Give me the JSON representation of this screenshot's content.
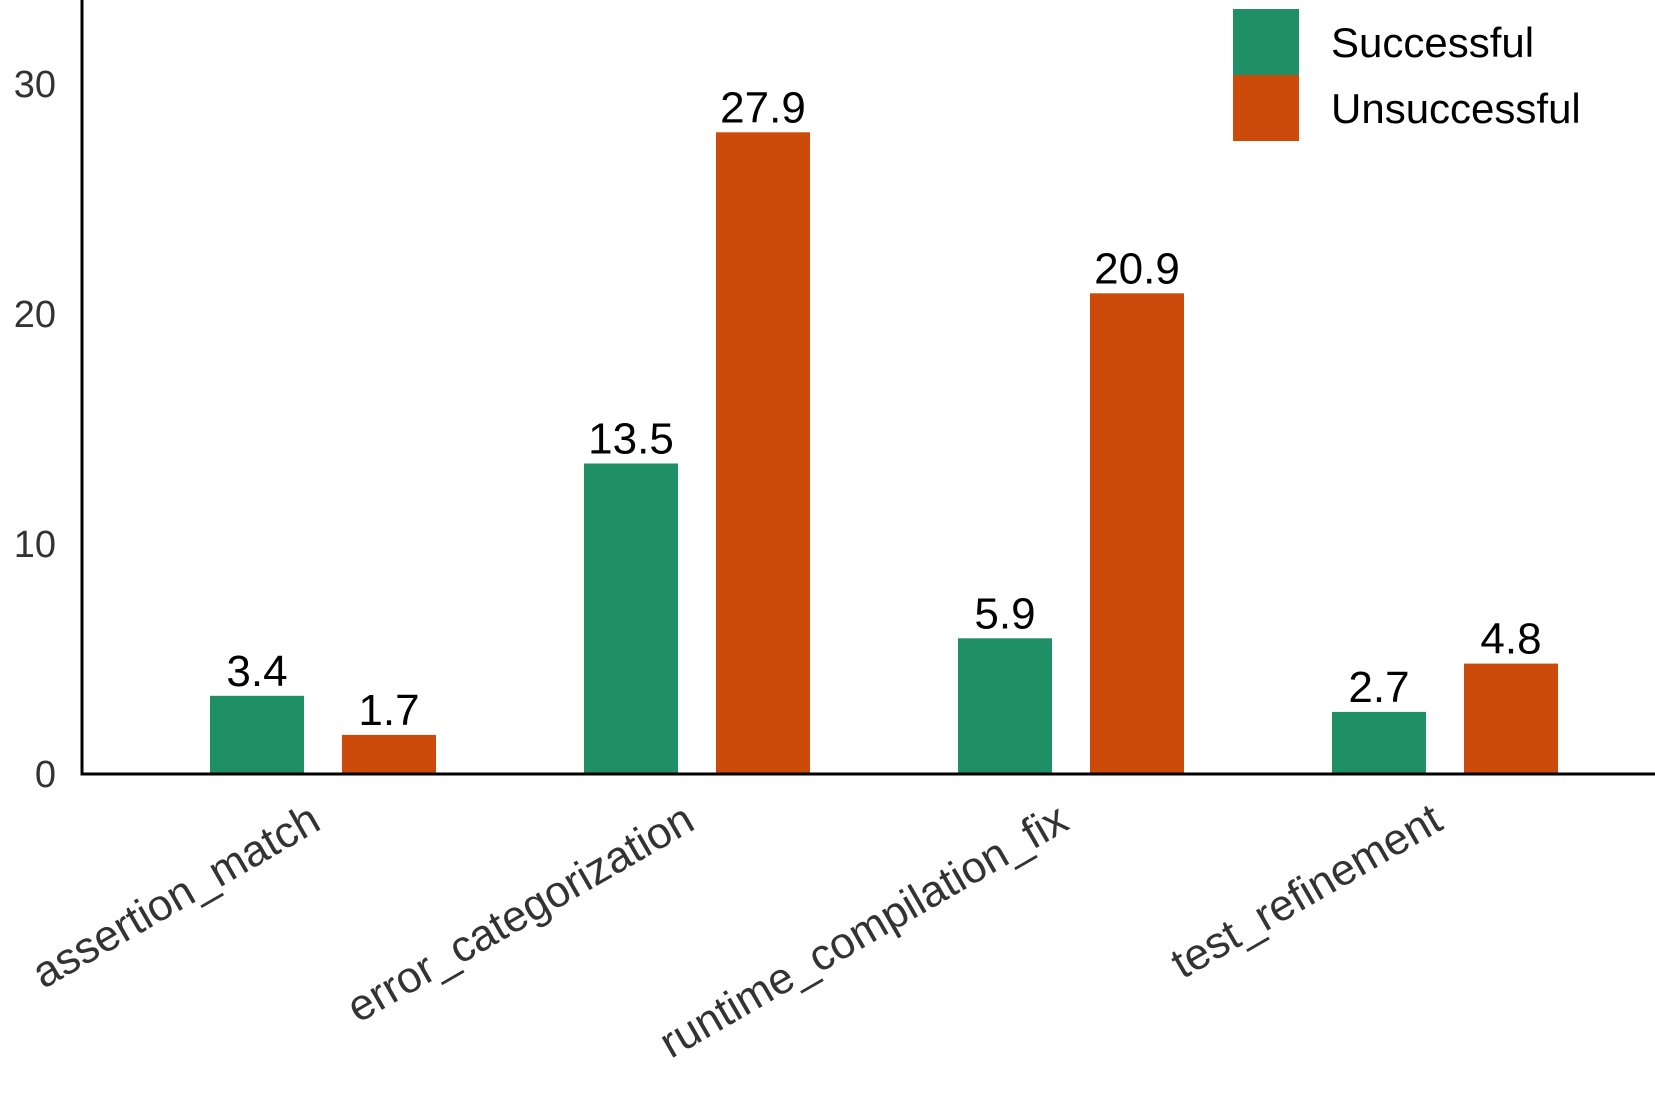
{
  "chart_data": {
    "type": "bar",
    "categories": [
      "assertion_match",
      "error_categorization",
      "runtime_compilation_fix",
      "test_refinement"
    ],
    "series": [
      {
        "name": "Successful",
        "values": [
          3.4,
          13.5,
          5.9,
          2.7
        ],
        "color": "#1f8f65"
      },
      {
        "name": "Unsuccessful",
        "values": [
          1.7,
          27.9,
          20.9,
          4.8
        ],
        "color": "#cc4a0a"
      }
    ],
    "title": "",
    "xlabel": "",
    "ylabel": "",
    "ylim": [
      0,
      33
    ],
    "yticks": [
      0,
      10,
      20,
      30
    ],
    "grid": false,
    "legend_position": "top-right"
  }
}
